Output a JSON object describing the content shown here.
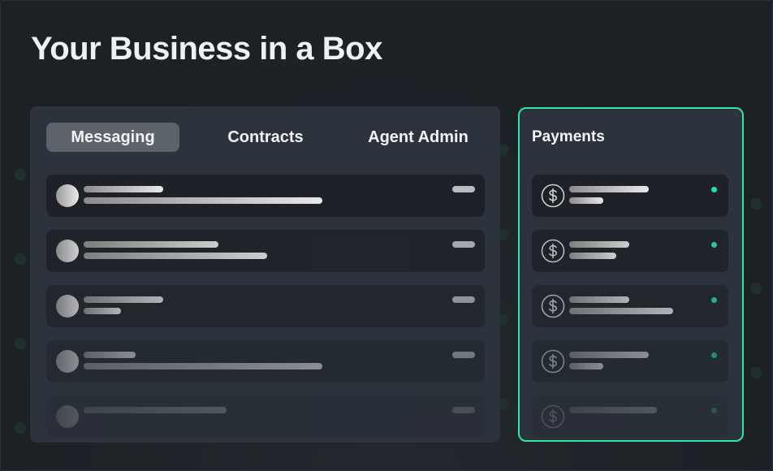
{
  "title": "Your Business in a Box",
  "tabs": [
    {
      "label": "Messaging",
      "active": true
    },
    {
      "label": "Contracts",
      "active": false
    },
    {
      "label": "Agent Admin",
      "active": false
    }
  ],
  "payments": {
    "title": "Payments",
    "status_color": "#1ee6a0",
    "item_icon": "dollar-coin-icon"
  },
  "colors": {
    "accent": "#2fe6a6",
    "background": "#1d2126",
    "panel": "#2c333c"
  }
}
